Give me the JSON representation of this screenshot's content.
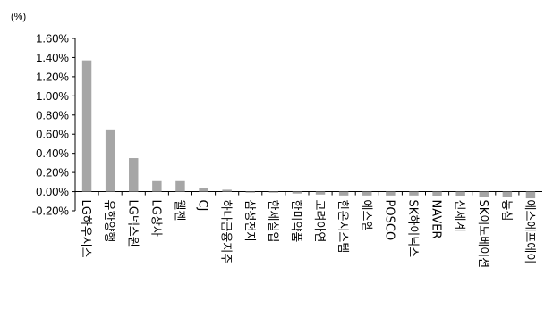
{
  "chart_data": {
    "type": "bar",
    "unit_label": "(%)",
    "title": "",
    "xlabel": "",
    "ylabel": "",
    "ylim": [
      -0.2,
      1.6
    ],
    "y_ticks": [
      -0.2,
      0.0,
      0.2,
      0.4,
      0.6,
      0.8,
      1.0,
      1.2,
      1.4,
      1.6
    ],
    "y_tick_labels": [
      "-0.20%",
      "0.00%",
      "0.20%",
      "0.40%",
      "0.60%",
      "0.80%",
      "1.00%",
      "1.20%",
      "1.40%",
      "1.60%"
    ],
    "grid": false,
    "bar_color": "#a6a6a6",
    "categories": [
      "LG하우시스",
      "유한양행",
      "LG넥스원",
      "LG상사",
      "웰젠",
      "CJ",
      "하나금융지주",
      "삼성전자",
      "한세실업",
      "한미약품",
      "고려아연",
      "한온시스템",
      "에스엠",
      "POSCO",
      "SK하이닉스",
      "NAVER",
      "신세계",
      "SK이노베이션",
      "농심",
      "에스에프에이"
    ],
    "values": [
      1.37,
      0.65,
      0.35,
      0.11,
      0.11,
      0.04,
      0.02,
      -0.01,
      -0.01,
      -0.02,
      -0.03,
      -0.04,
      -0.04,
      -0.04,
      -0.04,
      -0.05,
      -0.05,
      -0.06,
      -0.06,
      -0.07
    ]
  }
}
